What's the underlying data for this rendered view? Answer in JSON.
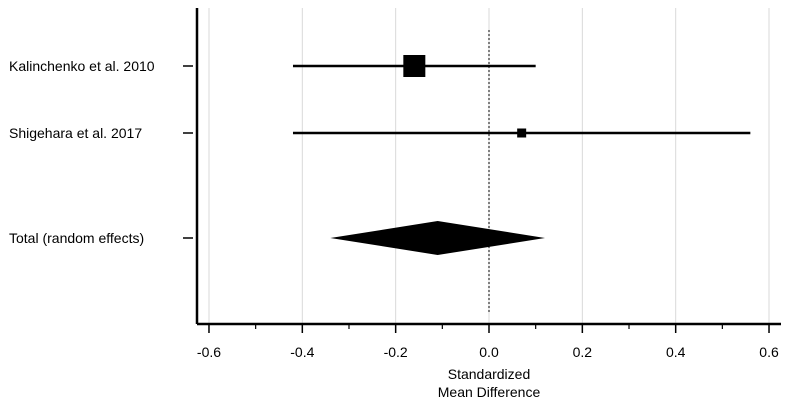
{
  "chart_data": {
    "type": "forest",
    "title": "",
    "xlabel_lines": [
      "Standardized",
      "Mean Difference"
    ],
    "xlim": [
      -0.62,
      0.62
    ],
    "xticks": [
      -0.6,
      -0.4,
      -0.2,
      0.0,
      0.2,
      0.4,
      0.6
    ],
    "xtick_labels": [
      "-0.6",
      "-0.4",
      "-0.2",
      "0.0",
      "0.2",
      "0.4",
      "0.6"
    ],
    "grid_vertical": true,
    "reference_line": 0.0,
    "studies": [
      {
        "label": "Kalinchenko et al. 2010",
        "estimate": -0.16,
        "ci_low": -0.42,
        "ci_high": 0.1,
        "weight": "large"
      },
      {
        "label": "Shigehara et al. 2017",
        "estimate": 0.07,
        "ci_low": -0.42,
        "ci_high": 0.56,
        "weight": "small"
      }
    ],
    "pooled": {
      "label": "Total (random effects)",
      "estimate": -0.11,
      "ci_low": -0.34,
      "ci_high": 0.12
    }
  }
}
